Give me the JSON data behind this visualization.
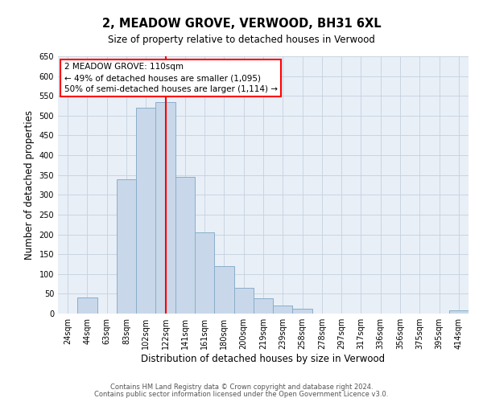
{
  "title": "2, MEADOW GROVE, VERWOOD, BH31 6XL",
  "subtitle": "Size of property relative to detached houses in Verwood",
  "xlabel": "Distribution of detached houses by size in Verwood",
  "ylabel": "Number of detached properties",
  "bar_labels": [
    "24sqm",
    "44sqm",
    "63sqm",
    "83sqm",
    "102sqm",
    "122sqm",
    "141sqm",
    "161sqm",
    "180sqm",
    "200sqm",
    "219sqm",
    "239sqm",
    "258sqm",
    "278sqm",
    "297sqm",
    "317sqm",
    "336sqm",
    "356sqm",
    "375sqm",
    "395sqm",
    "414sqm"
  ],
  "bar_values": [
    0,
    40,
    0,
    340,
    520,
    535,
    345,
    205,
    120,
    65,
    38,
    20,
    13,
    0,
    0,
    0,
    0,
    0,
    0,
    0,
    8
  ],
  "bar_color": "#c8d8ea",
  "bar_edge_color": "#8aaec8",
  "red_line_bin_index": 5,
  "ylim": [
    0,
    650
  ],
  "yticks": [
    0,
    50,
    100,
    150,
    200,
    250,
    300,
    350,
    400,
    450,
    500,
    550,
    600,
    650
  ],
  "annotation_box_text_line1": "2 MEADOW GROVE: 110sqm",
  "annotation_box_text_line2": "← 49% of detached houses are smaller (1,095)",
  "annotation_box_text_line3": "50% of semi-detached houses are larger (1,114) →",
  "footer_line1": "Contains HM Land Registry data © Crown copyright and database right 2024.",
  "footer_line2": "Contains public sector information licensed under the Open Government Licence v3.0.",
  "background_color": "#ffffff",
  "plot_bg_color": "#e8eff7",
  "grid_color": "#c5d0de",
  "title_fontsize": 10.5,
  "subtitle_fontsize": 8.5,
  "tick_fontsize": 7.0,
  "axis_label_fontsize": 8.5,
  "footer_fontsize": 6.0,
  "annotation_fontsize": 7.5
}
